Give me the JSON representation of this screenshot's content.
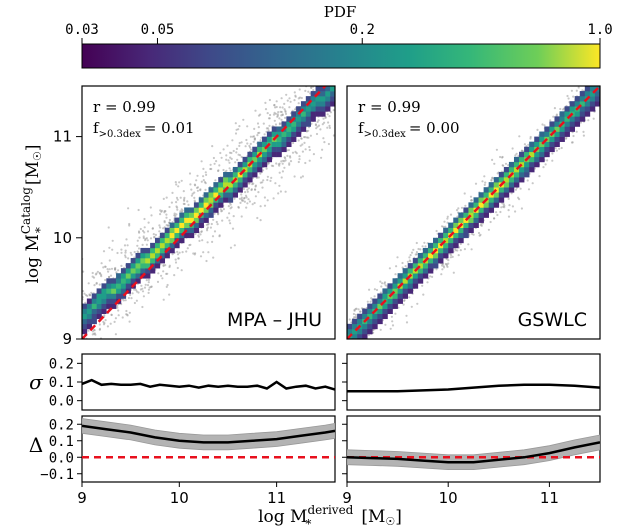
{
  "colorbar": {
    "label": "PDF",
    "ticks": [
      "0.03",
      "0.05",
      "0.2",
      "1.0"
    ],
    "tick_values": [
      0.03,
      0.05,
      0.2,
      1.0
    ],
    "range": [
      0.03,
      1.0
    ],
    "colormap": "viridis",
    "scale": "log"
  },
  "panels": [
    {
      "name": "MPA - JHU",
      "label": "MPA – JHU",
      "stat_r": "r = 0.99",
      "stat_f": "f",
      "stat_f_sub": ">0.3dex",
      "stat_f_val": "= 0.01"
    },
    {
      "name": "GSWLC",
      "label": "GSWLC",
      "stat_r": "r = 0.99",
      "stat_f": "f",
      "stat_f_sub": ">0.3dex",
      "stat_f_val": "= 0.00"
    }
  ],
  "axes": {
    "x_label": "log M",
    "x_label_sup": "derived",
    "x_label_sub": "*",
    "x_unit": "[M",
    "x_unit_end": "]",
    "y_label": "log M",
    "y_label_sup": "Catalog",
    "y_label_sub": "*",
    "y_unit": "[M",
    "y_unit_end": "]",
    "x_ticks": [
      "9",
      "10",
      "11"
    ],
    "y_ticks_main": [
      "9",
      "10",
      "11"
    ],
    "sigma_label": "σ",
    "delta_label": "Δ",
    "sigma_ticks": [
      "0.2",
      "0.1",
      "0.0"
    ],
    "delta_ticks": [
      "0.2",
      "0.1",
      "0.0",
      "−0.1"
    ]
  },
  "chart_data": [
    {
      "type": "heatmap",
      "title": "MPA – JHU",
      "xlabel": "log M*derived [M☉]",
      "ylabel": "log M*Catalog [M☉]",
      "xlim": [
        9.0,
        11.6
      ],
      "ylim": [
        9.0,
        11.5
      ],
      "one_to_one_line": true,
      "ridge": {
        "x": [
          9.0,
          9.5,
          10.0,
          10.5,
          11.0,
          11.6
        ],
        "y": [
          9.19,
          9.62,
          10.06,
          10.5,
          10.95,
          11.48
        ]
      },
      "r": 0.99,
      "f_gt_0p3dex": 0.01
    },
    {
      "type": "heatmap",
      "title": "GSWLC",
      "xlabel": "log M*derived [M☉]",
      "ylabel": "log M*Catalog [M☉]",
      "xlim": [
        9.0,
        11.5
      ],
      "ylim": [
        9.0,
        11.5
      ],
      "one_to_one_line": true,
      "ridge": {
        "x": [
          9.0,
          9.5,
          10.0,
          10.5,
          11.0,
          11.5
        ],
        "y": [
          9.0,
          9.48,
          9.96,
          10.46,
          10.96,
          11.5
        ]
      },
      "r": 0.99,
      "f_gt_0p3dex": 0.0
    },
    {
      "type": "line",
      "title": "sigma MPA – JHU",
      "ylabel": "σ",
      "ylim": [
        -0.05,
        0.25
      ],
      "x": [
        9.0,
        9.1,
        9.2,
        9.3,
        9.4,
        9.5,
        9.6,
        9.7,
        9.8,
        9.9,
        10.0,
        10.1,
        10.2,
        10.3,
        10.4,
        10.5,
        10.6,
        10.7,
        10.8,
        10.9,
        11.0,
        11.1,
        11.2,
        11.3,
        11.4,
        11.5,
        11.6
      ],
      "values": [
        0.09,
        0.11,
        0.085,
        0.09,
        0.085,
        0.085,
        0.09,
        0.075,
        0.085,
        0.08,
        0.075,
        0.08,
        0.07,
        0.08,
        0.075,
        0.08,
        0.075,
        0.075,
        0.08,
        0.065,
        0.1,
        0.065,
        0.075,
        0.08,
        0.065,
        0.075,
        0.06
      ]
    },
    {
      "type": "line",
      "title": "sigma GSWLC",
      "ylabel": "σ",
      "ylim": [
        -0.05,
        0.25
      ],
      "x": [
        9.0,
        9.25,
        9.5,
        9.75,
        10.0,
        10.25,
        10.5,
        10.75,
        11.0,
        11.25,
        11.5
      ],
      "values": [
        0.05,
        0.05,
        0.05,
        0.055,
        0.06,
        0.07,
        0.08,
        0.085,
        0.085,
        0.08,
        0.07
      ]
    },
    {
      "type": "area",
      "title": "Delta MPA – JHU",
      "ylabel": "Δ",
      "ylim": [
        -0.15,
        0.25
      ],
      "x": [
        9.0,
        9.25,
        9.5,
        9.75,
        10.0,
        10.25,
        10.5,
        10.75,
        11.0,
        11.25,
        11.5,
        11.6
      ],
      "values": [
        0.19,
        0.17,
        0.15,
        0.12,
        0.1,
        0.09,
        0.09,
        0.1,
        0.11,
        0.13,
        0.15,
        0.16
      ],
      "band_half_width": 0.045,
      "reference_line": 0.0
    },
    {
      "type": "area",
      "title": "Delta GSWLC",
      "ylabel": "Δ",
      "ylim": [
        -0.15,
        0.25
      ],
      "x": [
        9.0,
        9.25,
        9.5,
        9.75,
        10.0,
        10.25,
        10.5,
        10.75,
        11.0,
        11.25,
        11.5
      ],
      "values": [
        0.0,
        -0.005,
        -0.01,
        -0.02,
        -0.03,
        -0.03,
        -0.015,
        0.0,
        0.025,
        0.06,
        0.09
      ],
      "band_half_width": 0.045,
      "reference_line": 0.0
    }
  ]
}
